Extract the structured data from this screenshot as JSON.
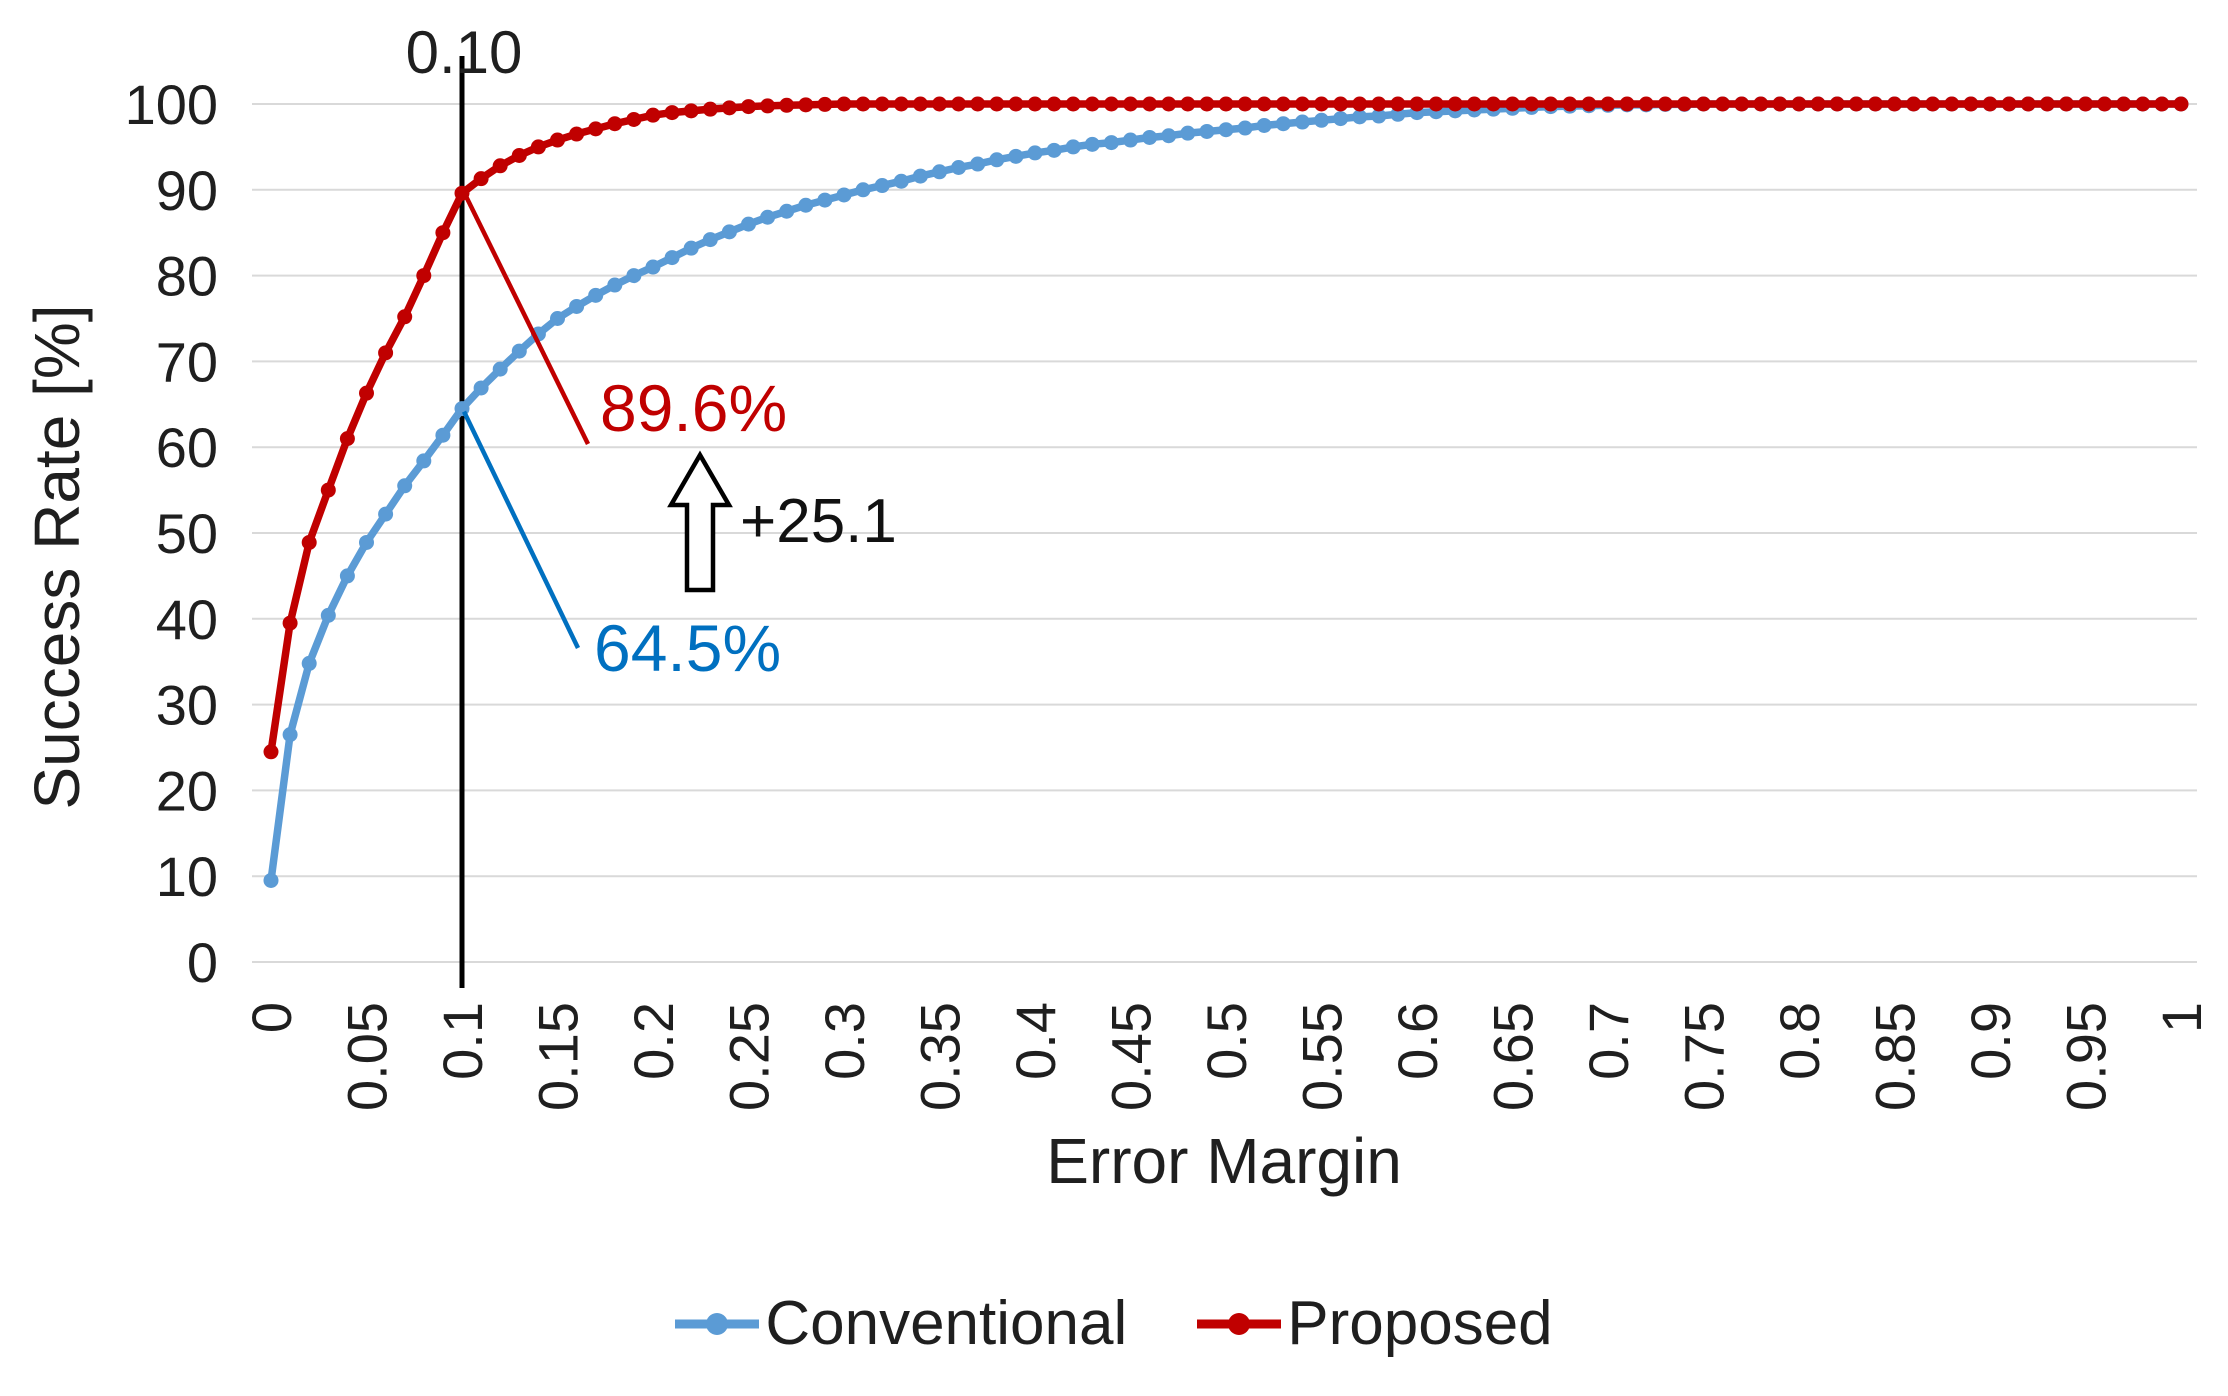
{
  "chart_data": {
    "type": "line",
    "title": "",
    "xlabel": "Error Margin",
    "ylabel": "Success Rate [%]",
    "xlim": [
      0,
      1
    ],
    "ylim": [
      0,
      100
    ],
    "x_start": 0,
    "x_step": 0.01,
    "grid": "horizontal",
    "legend_position": "bottom",
    "xtick_values": [
      0,
      0.05,
      0.1,
      0.15,
      0.2,
      0.25,
      0.3,
      0.35,
      0.4,
      0.45,
      0.5,
      0.55,
      0.6,
      0.65,
      0.7,
      0.75,
      0.8,
      0.85,
      0.9,
      0.95,
      1
    ],
    "xtick_labels": [
      "0",
      "0.05",
      "0.1",
      "0.15",
      "0.2",
      "0.25",
      "0.3",
      "0.35",
      "0.4",
      "0.45",
      "0.5",
      "0.55",
      "0.6",
      "0.65",
      "0.7",
      "0.75",
      "0.8",
      "0.85",
      "0.9",
      "0.95",
      "1"
    ],
    "ytick_values": [
      0,
      10,
      20,
      30,
      40,
      50,
      60,
      70,
      80,
      90,
      100
    ],
    "ytick_labels": [
      "0",
      "10",
      "20",
      "30",
      "40",
      "50",
      "60",
      "70",
      "80",
      "90",
      "100"
    ],
    "series": [
      {
        "name": "Conventional",
        "color": "#5B9BD5",
        "values": [
          9.5,
          26.5,
          34.8,
          40.4,
          45,
          48.9,
          52.2,
          55.5,
          58.4,
          61.4,
          64.5,
          66.9,
          69.1,
          71.2,
          73.2,
          75,
          76.4,
          77.7,
          78.9,
          80,
          81,
          82.1,
          83.2,
          84.2,
          85.1,
          86,
          86.8,
          87.5,
          88.2,
          88.8,
          89.4,
          90,
          90.5,
          91,
          91.6,
          92.1,
          92.6,
          93,
          93.5,
          93.9,
          94.3,
          94.6,
          95,
          95.3,
          95.5,
          95.8,
          96.1,
          96.3,
          96.6,
          96.8,
          97,
          97.2,
          97.5,
          97.7,
          97.9,
          98.1,
          98.3,
          98.5,
          98.6,
          98.8,
          99,
          99.1,
          99.2,
          99.3,
          99.4,
          99.5,
          99.6,
          99.7,
          99.75,
          99.8,
          99.85,
          99.9,
          99.9,
          99.95,
          99.95,
          100,
          100,
          100,
          100,
          100,
          100,
          100,
          100,
          100,
          100,
          100,
          100,
          100,
          100,
          100,
          100,
          100,
          100,
          100,
          100,
          100,
          100,
          100,
          100,
          100,
          100
        ]
      },
      {
        "name": "Proposed",
        "color": "#C00000",
        "values": [
          24.5,
          39.5,
          48.9,
          55,
          61,
          66.3,
          71,
          75.2,
          80,
          85,
          89.6,
          91.3,
          92.8,
          94,
          95,
          95.8,
          96.5,
          97.1,
          97.7,
          98.2,
          98.7,
          99,
          99.2,
          99.4,
          99.55,
          99.7,
          99.78,
          99.85,
          99.9,
          99.95,
          100,
          100,
          100,
          100,
          100,
          100,
          100,
          100,
          100,
          100,
          100,
          100,
          100,
          100,
          100,
          100,
          100,
          100,
          100,
          100,
          100,
          100,
          100,
          100,
          100,
          100,
          100,
          100,
          100,
          100,
          100,
          100,
          100,
          100,
          100,
          100,
          100,
          100,
          100,
          100,
          100,
          100,
          100,
          100,
          100,
          100,
          100,
          100,
          100,
          100,
          100,
          100,
          100,
          100,
          100,
          100,
          100,
          100,
          100,
          100,
          100,
          100,
          100,
          100,
          100,
          100,
          100,
          100,
          100,
          100,
          100
        ]
      }
    ],
    "annotations": {
      "vline_x": 0.1,
      "vline_label": "0.10",
      "proposed_at_vline_label": "89.6%",
      "conventional_at_vline_label": "64.5%",
      "delta_label": "+25.1"
    }
  },
  "legend": {
    "conventional_label": "Conventional",
    "proposed_label": "Proposed"
  },
  "colors": {
    "conventional_series": "#5B9BD5",
    "proposed_series": "#C00000",
    "conventional_annotation": "#0070C0",
    "proposed_annotation": "#C00000",
    "gridline": "#D9D9D9",
    "axis_text": "#1f1f1f",
    "vline": "#000000"
  }
}
